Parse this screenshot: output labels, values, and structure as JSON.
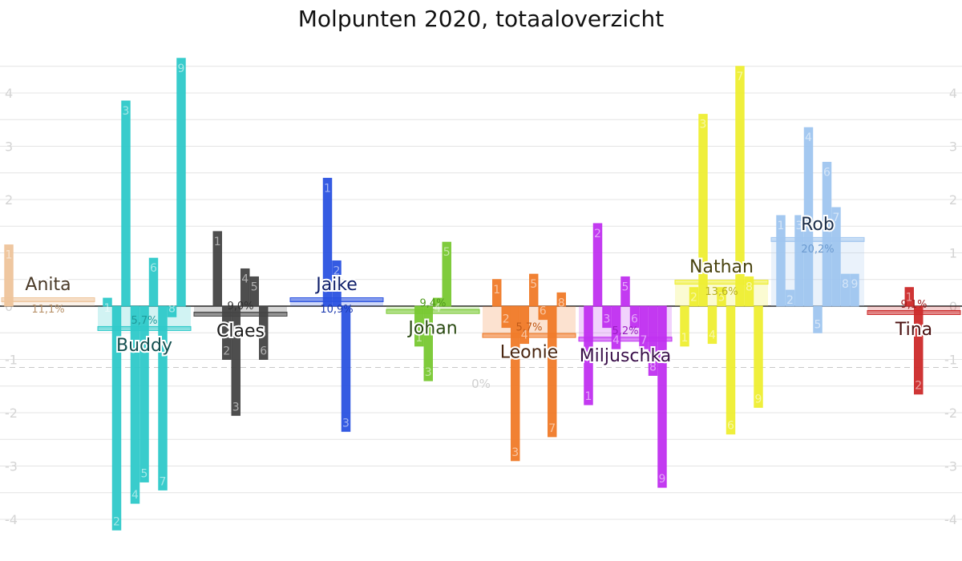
{
  "chart_data": {
    "type": "bar",
    "title": "Molpunten 2020, totaaloverzicht",
    "zero_label": "0%",
    "left_axis": {
      "ylim": [
        -4.15,
        4.5
      ],
      "ticks": [
        "4",
        "3",
        "2",
        "1",
        "0",
        "-1",
        "-2",
        "-3",
        "-4"
      ]
    },
    "right_axis": {
      "ylim": [
        -4.15,
        4.5
      ],
      "ticks": [
        "4",
        "3",
        "2",
        "1",
        "0",
        "-1",
        "-2",
        "-3",
        "-4"
      ]
    },
    "reference_line": -1.15,
    "grid": true,
    "series": [
      {
        "name": "Anita",
        "color": "#eec49b",
        "textColor": "#4a3a28",
        "pctColor": "#b8926a",
        "percentage": "11,1%",
        "average": 0.12,
        "label_side": "above",
        "episodes": [
          {
            "ep": "1",
            "value": 1.15
          }
        ]
      },
      {
        "name": "Buddy",
        "color": "#2ec9c9",
        "textColor": "#124f4f",
        "pctColor": "#1e9a9a",
        "percentage": "5,7%",
        "average": -0.42,
        "label_side": "below",
        "episodes": [
          {
            "ep": "1",
            "value": 0.15
          },
          {
            "ep": "2",
            "value": -4.2
          },
          {
            "ep": "3",
            "value": 3.85
          },
          {
            "ep": "4",
            "value": -3.7
          },
          {
            "ep": "5",
            "value": -3.3
          },
          {
            "ep": "6",
            "value": 0.9
          },
          {
            "ep": "7",
            "value": -3.45
          },
          {
            "ep": "8",
            "value": -0.2
          },
          {
            "ep": "9",
            "value": 4.65
          }
        ]
      },
      {
        "name": "Claes",
        "color": "#444444",
        "textColor": "#1c1c1c",
        "pctColor": "#333333",
        "percentage": "9,0%",
        "average": -0.15,
        "label_side": "below",
        "episodes": [
          {
            "ep": "1",
            "value": 1.4
          },
          {
            "ep": "2",
            "value": -1.0
          },
          {
            "ep": "3",
            "value": -2.05
          },
          {
            "ep": "4",
            "value": 0.7
          },
          {
            "ep": "5",
            "value": 0.55
          },
          {
            "ep": "6",
            "value": -1.0
          }
        ]
      },
      {
        "name": "Jaike",
        "color": "#2a52e0",
        "textColor": "#0f1f6a",
        "pctColor": "#1c3ab0",
        "percentage": "10,9%",
        "average": 0.12,
        "label_side": "above",
        "episodes": [
          {
            "ep": "1",
            "value": 2.4
          },
          {
            "ep": "2",
            "value": 0.85
          },
          {
            "ep": "3",
            "value": -2.35
          }
        ]
      },
      {
        "name": "Johan",
        "color": "#78c832",
        "textColor": "#2a4a12",
        "pctColor": "#4f9a1c",
        "percentage": "9,4%",
        "average": -0.1,
        "label_side": "below",
        "episodes": [
          {
            "ep": "1",
            "value": -0.75
          },
          {
            "ep": "3",
            "value": -1.4
          },
          {
            "ep": "4",
            "value": 0.15
          },
          {
            "ep": "5",
            "value": 1.2
          }
        ]
      },
      {
        "name": "Leonie",
        "color": "#f07a28",
        "textColor": "#4a2610",
        "pctColor": "#c05a18",
        "percentage": "5,7%",
        "average": -0.55,
        "label_side": "below",
        "episodes": [
          {
            "ep": "1",
            "value": 0.5
          },
          {
            "ep": "2",
            "value": -0.4
          },
          {
            "ep": "3",
            "value": -2.9
          },
          {
            "ep": "4",
            "value": -0.7
          },
          {
            "ep": "5",
            "value": 0.6
          },
          {
            "ep": "6",
            "value": -0.25
          },
          {
            "ep": "7",
            "value": -2.45
          },
          {
            "ep": "8",
            "value": 0.25
          }
        ]
      },
      {
        "name": "Miljuschka",
        "color": "#c030f0",
        "textColor": "#3a0f4a",
        "pctColor": "#9a1cc0",
        "percentage": "5,2%",
        "average": -0.62,
        "label_side": "below",
        "episodes": [
          {
            "ep": "1",
            "value": -1.85
          },
          {
            "ep": "2",
            "value": 1.55
          },
          {
            "ep": "3",
            "value": -0.4
          },
          {
            "ep": "4",
            "value": -0.8
          },
          {
            "ep": "5",
            "value": 0.55
          },
          {
            "ep": "6",
            "value": -0.4
          },
          {
            "ep": "7",
            "value": -0.8
          },
          {
            "ep": "8",
            "value": -1.3
          },
          {
            "ep": "9",
            "value": -3.4
          }
        ]
      },
      {
        "name": "Nathan",
        "color": "#eeee32",
        "textColor": "#4a4410",
        "pctColor": "#b8b020",
        "percentage": "13,6%",
        "average": 0.45,
        "label_side": "above",
        "episodes": [
          {
            "ep": "1",
            "value": -0.75
          },
          {
            "ep": "2",
            "value": 0.35
          },
          {
            "ep": "3",
            "value": 3.6
          },
          {
            "ep": "4",
            "value": -0.7
          },
          {
            "ep": "5",
            "value": 0.35
          },
          {
            "ep": "6",
            "value": -2.4
          },
          {
            "ep": "7",
            "value": 4.5
          },
          {
            "ep": "8",
            "value": 0.55
          },
          {
            "ep": "9",
            "value": -1.9
          }
        ]
      },
      {
        "name": "Rob",
        "color": "#9fc5ef",
        "textColor": "#1c2e4a",
        "pctColor": "#6a9ad0",
        "percentage": "20,2%",
        "average": 1.25,
        "label_side": "above",
        "episodes": [
          {
            "ep": "1",
            "value": 1.7
          },
          {
            "ep": "2",
            "value": 0.3
          },
          {
            "ep": "3",
            "value": 1.7
          },
          {
            "ep": "4",
            "value": 3.35
          },
          {
            "ep": "5",
            "value": -0.5
          },
          {
            "ep": "6",
            "value": 2.7
          },
          {
            "ep": "7",
            "value": 1.85
          },
          {
            "ep": "8",
            "value": 0.6
          },
          {
            "ep": "9",
            "value": 0.6
          }
        ]
      },
      {
        "name": "Tina",
        "color": "#cc2a2a",
        "textColor": "#4a0f0f",
        "pctColor": "#a01c1c",
        "percentage": "9,1%",
        "average": -0.12,
        "label_side": "below",
        "episodes": [
          {
            "ep": "1",
            "value": 0.35
          },
          {
            "ep": "2",
            "value": -1.65
          }
        ]
      }
    ]
  }
}
